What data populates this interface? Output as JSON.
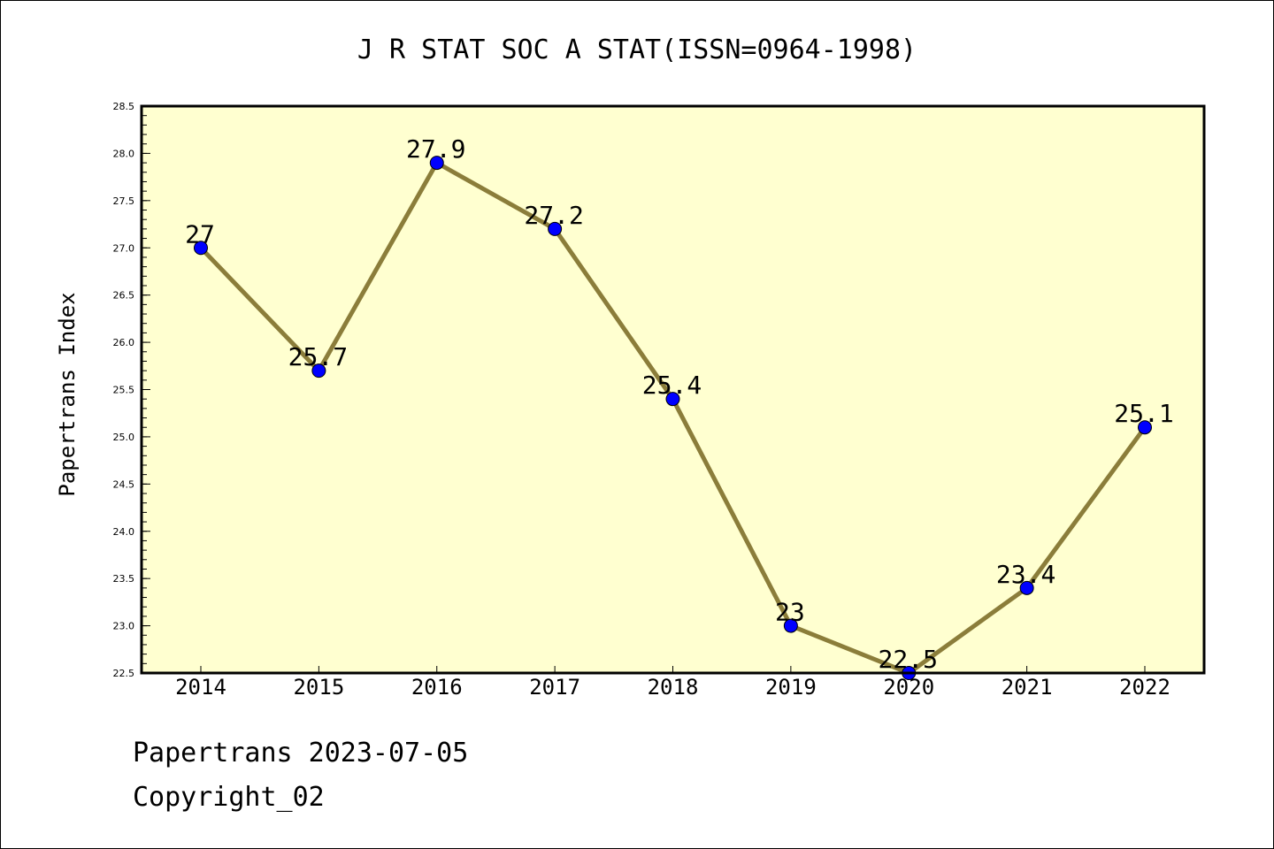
{
  "chart_data": {
    "type": "line",
    "title": "J R STAT SOC A STAT(ISSN=0964-1998)",
    "ylabel": "Papertrans Index",
    "xlabel": "",
    "categories": [
      "2014",
      "2015",
      "2016",
      "2017",
      "2018",
      "2019",
      "2020",
      "2021",
      "2022"
    ],
    "values": [
      27,
      25.7,
      27.9,
      27.2,
      25.4,
      23,
      22.5,
      23.4,
      25.1
    ],
    "data_labels": [
      "27",
      "25.7",
      "27.9",
      "27.2",
      "25.4",
      "23",
      "22.5",
      "23.4",
      "25.1"
    ],
    "ylim": [
      22.5,
      28.5
    ],
    "yticks": [
      "22.5",
      "23.0",
      "23.5",
      "24.0",
      "24.5",
      "25.0",
      "25.5",
      "26.0",
      "26.5",
      "27.0",
      "27.5",
      "28.0",
      "28.5"
    ],
    "grid": false,
    "colors": {
      "plot_background": "#ffffd0",
      "line": "#8b7d3a",
      "marker": "#0000ff"
    }
  },
  "footer": {
    "line1": "Papertrans 2023-07-05",
    "line2": "Copyright_02"
  }
}
